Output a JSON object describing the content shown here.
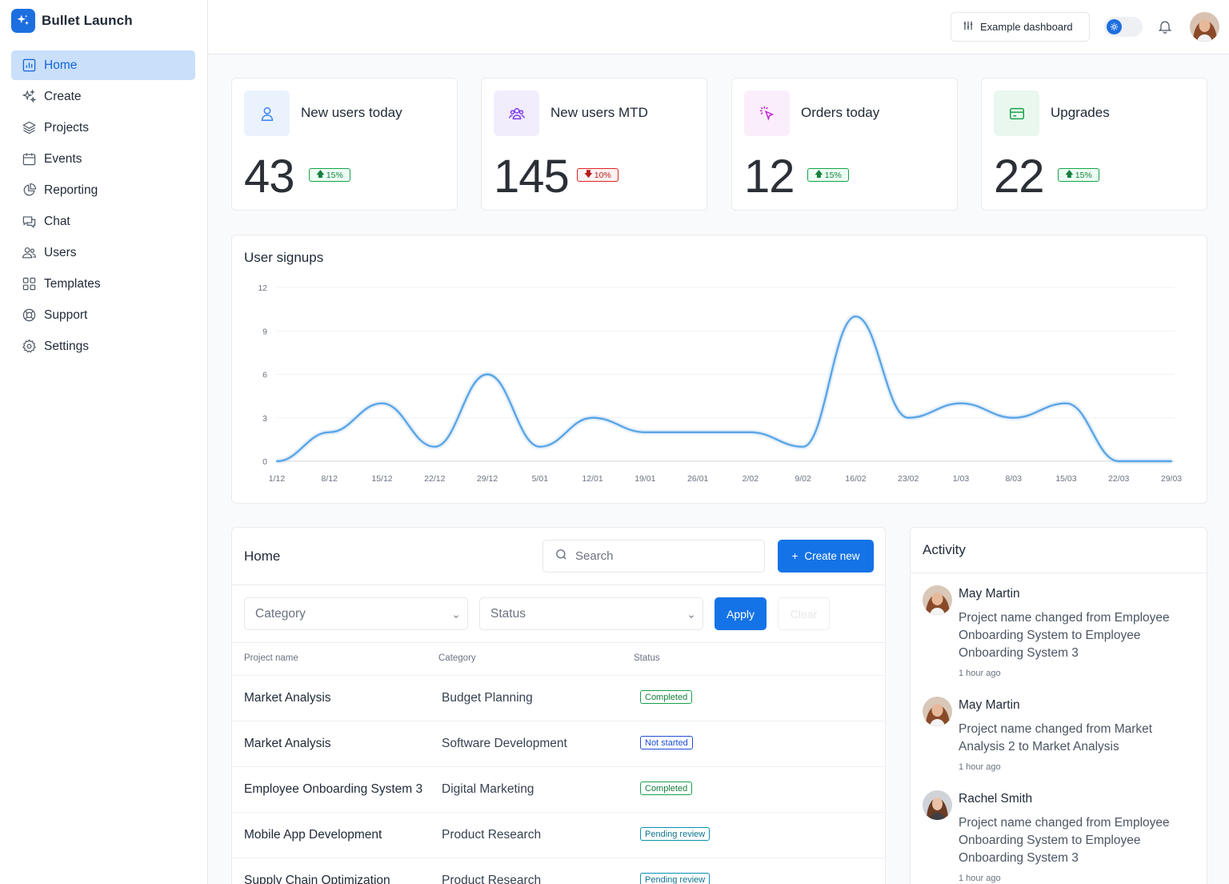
{
  "brand": {
    "name": "Bullet Launch"
  },
  "sidebar": {
    "items": [
      {
        "label": "Home",
        "icon": "chart-bar-icon",
        "active": true
      },
      {
        "label": "Create",
        "icon": "sparkles-icon"
      },
      {
        "label": "Projects",
        "icon": "layers-icon"
      },
      {
        "label": "Events",
        "icon": "calendar-icon"
      },
      {
        "label": "Reporting",
        "icon": "pie-chart-icon"
      },
      {
        "label": "Chat",
        "icon": "chat-icon"
      },
      {
        "label": "Users",
        "icon": "users-icon"
      },
      {
        "label": "Templates",
        "icon": "grid-icon"
      },
      {
        "label": "Support",
        "icon": "lifebuoy-icon"
      },
      {
        "label": "Settings",
        "icon": "gear-icon"
      }
    ]
  },
  "topbar": {
    "example_label": "Example dashboard"
  },
  "stats": [
    {
      "title": "New users today",
      "value": "43",
      "change": "15%",
      "direction": "up",
      "icon": "user-icon",
      "icon_color": "#3b82f6",
      "icon_bg": "#eaf2fd"
    },
    {
      "title": "New users MTD",
      "value": "145",
      "change": "10%",
      "direction": "down",
      "icon": "users-group-icon",
      "icon_color": "#7c3aed",
      "icon_bg": "#f1edfd"
    },
    {
      "title": "Orders today",
      "value": "12",
      "change": "15%",
      "direction": "up",
      "icon": "cursor-click-icon",
      "icon_color": "#c026d3",
      "icon_bg": "#fbeefb"
    },
    {
      "title": "Upgrades",
      "value": "22",
      "change": "15%",
      "direction": "up",
      "icon": "credit-card-icon",
      "icon_color": "#16a34a",
      "icon_bg": "#e9f7ee"
    }
  ],
  "chart": {
    "title": "User signups"
  },
  "chart_data": {
    "type": "line",
    "title": "User signups",
    "x": [
      "1/12",
      "8/12",
      "15/12",
      "22/12",
      "29/12",
      "5/01",
      "12/01",
      "19/01",
      "26/01",
      "2/02",
      "9/02",
      "16/02",
      "23/02",
      "1/03",
      "8/03",
      "15/03",
      "22/03",
      "29/03"
    ],
    "values": [
      0,
      2,
      4,
      1,
      6,
      1,
      3,
      2,
      2,
      2,
      1,
      10,
      3,
      4,
      3,
      4,
      0,
      0
    ],
    "yticks": [
      0,
      3,
      6,
      9,
      12
    ],
    "ylim": [
      0,
      12
    ],
    "grid": true,
    "color": "#5aa5e6"
  },
  "table": {
    "title": "Home",
    "search_placeholder": "Search",
    "create_label": "Create new",
    "category_placeholder": "Category",
    "status_placeholder": "Status",
    "apply_label": "Apply",
    "clear_label": "Clear",
    "columns": [
      "Project name",
      "Category",
      "Status"
    ],
    "rows": [
      {
        "name": "Market Analysis",
        "category": "Budget Planning",
        "status": "Completed",
        "status_type": "completed"
      },
      {
        "name": "Market Analysis",
        "category": "Software Development",
        "status": "Not started",
        "status_type": "notstarted"
      },
      {
        "name": "Employee Onboarding System 3",
        "category": "Digital Marketing",
        "status": "Completed",
        "status_type": "completed"
      },
      {
        "name": "Mobile App Development",
        "category": "Product Research",
        "status": "Pending review",
        "status_type": "pending"
      },
      {
        "name": "Supply Chain Optimization",
        "category": "Product Research",
        "status": "Pending review",
        "status_type": "pending"
      }
    ]
  },
  "activity": {
    "title": "Activity",
    "items": [
      {
        "name": "May Martin",
        "text": "Project name changed from Employee Onboarding System to Employee Onboarding System 3",
        "time": "1 hour ago"
      },
      {
        "name": "May Martin",
        "text": "Project name changed from Market Analysis 2 to Market Analysis",
        "time": "1 hour ago"
      },
      {
        "name": "Rachel Smith",
        "text": "Project name changed from Employee Onboarding System to Employee Onboarding System 3",
        "time": "1 hour ago"
      }
    ]
  }
}
